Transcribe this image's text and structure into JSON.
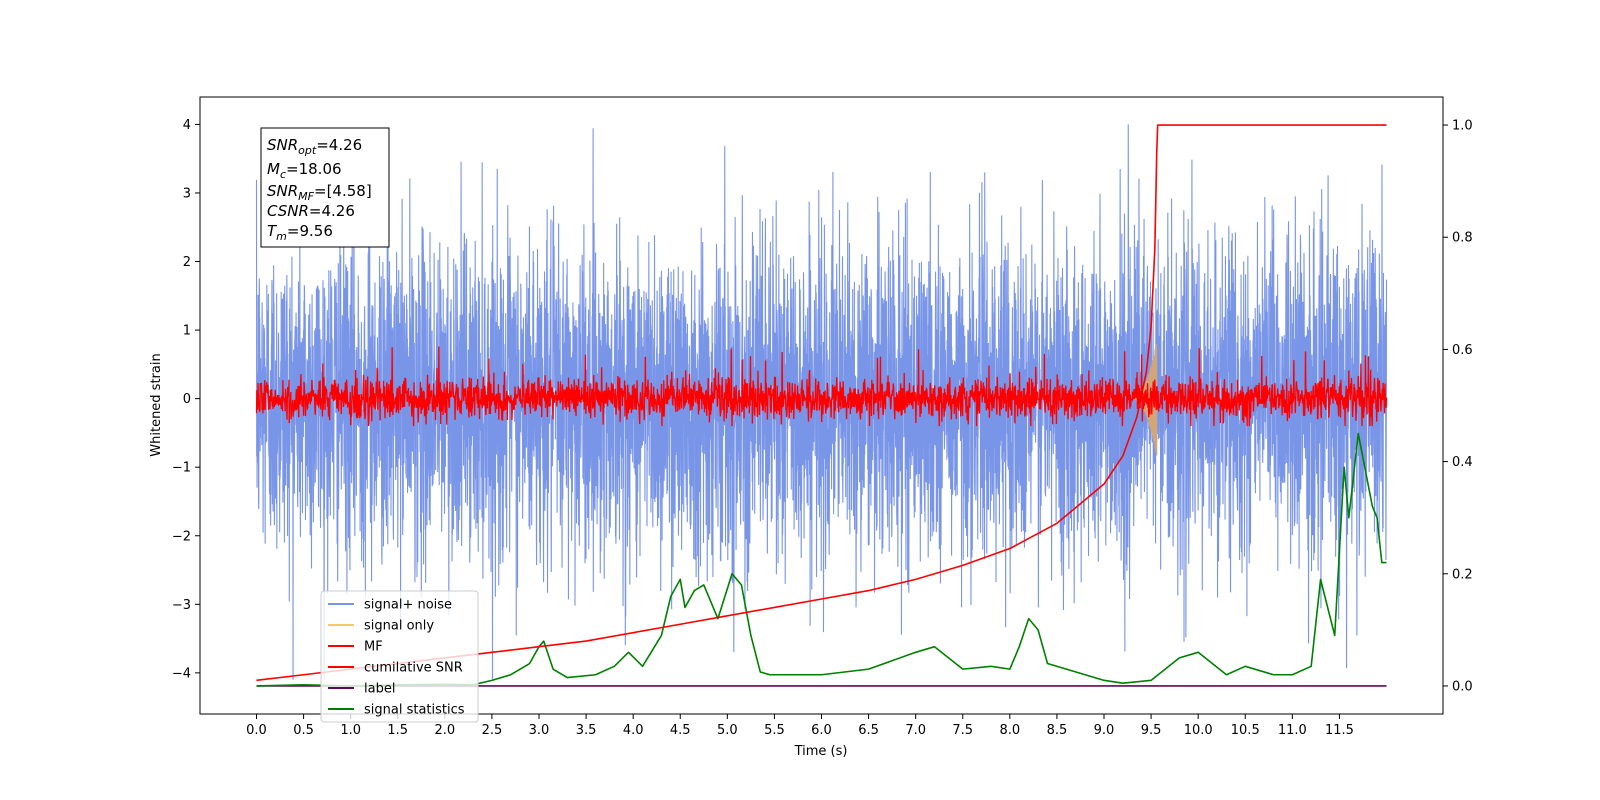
{
  "chart_data": {
    "type": "line",
    "title": "",
    "xlabel": "Time (s)",
    "ylabel": "Whitened strain",
    "xlim": [
      -0.6,
      12.6
    ],
    "ylim_left": [
      -4.6,
      4.4
    ],
    "ylim_right": [
      -0.05,
      1.05
    ],
    "x_ticks": [
      "0.0",
      "0.5",
      "1.0",
      "1.5",
      "2.0",
      "2.5",
      "3.0",
      "3.5",
      "4.0",
      "4.5",
      "5.0",
      "5.5",
      "6.0",
      "6.5",
      "7.0",
      "7.5",
      "8.0",
      "8.5",
      "9.0",
      "9.5",
      "10.0",
      "10.5",
      "11.0",
      "11.5"
    ],
    "y_ticks_left": [
      "4",
      "3",
      "2",
      "1",
      "0",
      "−1",
      "−2",
      "−3",
      "−4"
    ],
    "y_ticks_right": [
      "1.0",
      "0.8",
      "0.6",
      "0.4",
      "0.2",
      "0.0"
    ],
    "legend_position": "lower-left",
    "legend": [
      {
        "label": "signal+ noise",
        "color": "#7995e8"
      },
      {
        "label": "signal only",
        "color": "#f5c86a"
      },
      {
        "label": "MF",
        "color": "#ff0000"
      },
      {
        "label": "cumilative SNR",
        "color": "#ff0000"
      },
      {
        "label": "label",
        "color": "#5b0a5b"
      },
      {
        "label": "signal statistics",
        "color": "#008000"
      }
    ],
    "annotations": {
      "snr_opt": {
        "symbol": "SNR",
        "sub": "opt",
        "value": "=4.26"
      },
      "mc": {
        "symbol": "M",
        "sub": "c",
        "value": "=18.06"
      },
      "snr_mf": {
        "symbol": "SNR",
        "sub": "MF",
        "value": "=[4.58]"
      },
      "csnr": {
        "symbol": "CSNR",
        "sub": "",
        "value": "=4.26"
      },
      "tm": {
        "symbol": "T",
        "sub": "m",
        "value": "=9.56"
      }
    },
    "series": [
      {
        "name": "signal+ noise",
        "axis": "left",
        "color": "#7995e8",
        "generated": true,
        "x_range": [
          0.0,
          12.0
        ],
        "amplitude_std": 1.15,
        "approx_range": [
          -4.1,
          4.0
        ]
      },
      {
        "name": "MF",
        "axis": "left",
        "color": "#ff0000",
        "generated": true,
        "x_range": [
          0.0,
          12.0
        ],
        "amplitude_std": 0.15,
        "approx_range": [
          -0.4,
          0.9
        ]
      },
      {
        "name": "signal only",
        "axis": "left",
        "color": "#d2a679",
        "generated": true,
        "x_range": [
          9.3,
          9.56
        ],
        "peak_amplitude": 0.85
      },
      {
        "name": "cumilative SNR",
        "axis": "right",
        "color": "#ff0000",
        "x": [
          0.0,
          0.5,
          1.0,
          1.5,
          2.0,
          2.5,
          3.0,
          3.5,
          4.0,
          4.5,
          5.0,
          5.5,
          6.0,
          6.5,
          7.0,
          7.5,
          8.0,
          8.5,
          9.0,
          9.2,
          9.35,
          9.45,
          9.5,
          9.54,
          9.56,
          9.57,
          12.0
        ],
        "y": [
          0.01,
          0.02,
          0.03,
          0.04,
          0.05,
          0.06,
          0.07,
          0.08,
          0.095,
          0.11,
          0.125,
          0.14,
          0.155,
          0.17,
          0.19,
          0.215,
          0.245,
          0.29,
          0.36,
          0.41,
          0.48,
          0.56,
          0.64,
          0.78,
          0.95,
          1.0,
          1.0
        ]
      },
      {
        "name": "label",
        "axis": "right",
        "color": "#5b0a5b",
        "x": [
          0.0,
          12.0
        ],
        "y": [
          0.0,
          0.0
        ]
      },
      {
        "name": "signal statistics",
        "axis": "right",
        "color": "#008000",
        "x": [
          0.0,
          0.5,
          1.0,
          1.5,
          2.0,
          2.3,
          2.5,
          2.7,
          2.9,
          3.0,
          3.05,
          3.15,
          3.3,
          3.6,
          3.8,
          3.95,
          4.1,
          4.3,
          4.4,
          4.5,
          4.55,
          4.65,
          4.75,
          4.9,
          5.05,
          5.15,
          5.25,
          5.35,
          5.45,
          6.0,
          6.5,
          7.0,
          7.2,
          7.5,
          7.8,
          8.0,
          8.1,
          8.2,
          8.3,
          8.4,
          8.6,
          9.0,
          9.2,
          9.5,
          9.8,
          10.0,
          10.3,
          10.5,
          10.8,
          11.0,
          11.2,
          11.3,
          11.45,
          11.55,
          11.6,
          11.7,
          11.85,
          11.9,
          11.95,
          12.0
        ],
        "y": [
          0.0,
          0.002,
          0.0,
          0.002,
          0.003,
          0.002,
          0.01,
          0.02,
          0.04,
          0.07,
          0.08,
          0.03,
          0.015,
          0.02,
          0.035,
          0.06,
          0.035,
          0.09,
          0.16,
          0.19,
          0.14,
          0.17,
          0.18,
          0.12,
          0.2,
          0.18,
          0.09,
          0.025,
          0.02,
          0.02,
          0.03,
          0.06,
          0.07,
          0.03,
          0.035,
          0.03,
          0.07,
          0.12,
          0.1,
          0.04,
          0.03,
          0.01,
          0.005,
          0.01,
          0.05,
          0.06,
          0.02,
          0.035,
          0.02,
          0.02,
          0.035,
          0.19,
          0.09,
          0.39,
          0.3,
          0.45,
          0.32,
          0.3,
          0.22,
          0.22
        ]
      }
    ]
  }
}
